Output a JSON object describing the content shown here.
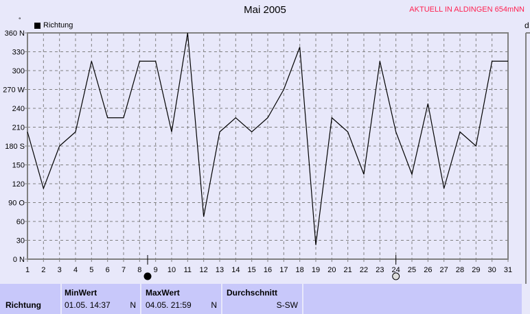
{
  "header": {
    "title": "Mai 2005",
    "aktuell": "AKTUELL IN ALDINGEN 654mNN",
    "unit": "°",
    "right_panel_label": "d"
  },
  "chart_data": {
    "type": "line",
    "title": "Mai 2005",
    "legend": [
      {
        "name": "Richtung",
        "color": "#000000"
      }
    ],
    "legend_placement": "top-left",
    "grid": true,
    "x": [
      1,
      2,
      3,
      4,
      5,
      6,
      7,
      8,
      9,
      10,
      11,
      12,
      13,
      14,
      15,
      16,
      17,
      18,
      19,
      20,
      21,
      22,
      23,
      24,
      25,
      26,
      27,
      28,
      29,
      30,
      31
    ],
    "xlim": [
      1,
      31
    ],
    "ylim": [
      0,
      360
    ],
    "yticks": [
      {
        "v": 0,
        "label": "0  N"
      },
      {
        "v": 30,
        "label": "30"
      },
      {
        "v": 60,
        "label": "60"
      },
      {
        "v": 90,
        "label": "90  O"
      },
      {
        "v": 120,
        "label": "120"
      },
      {
        "v": 150,
        "label": "150"
      },
      {
        "v": 180,
        "label": "180 S"
      },
      {
        "v": 210,
        "label": "210"
      },
      {
        "v": 240,
        "label": "240"
      },
      {
        "v": 270,
        "label": "270 W"
      },
      {
        "v": 300,
        "label": "300"
      },
      {
        "v": 330,
        "label": "330"
      },
      {
        "v": 360,
        "label": "360 N"
      }
    ],
    "series": [
      {
        "name": "Richtung",
        "color": "#000000",
        "values": [
          202.5,
          112.5,
          180,
          202.5,
          315,
          225,
          225,
          315,
          315,
          202.5,
          360,
          67.5,
          202.5,
          225,
          202.5,
          225,
          270,
          337.5,
          22.5,
          225,
          202.5,
          135,
          315,
          202.5,
          135,
          247.5,
          112.5,
          202.5,
          180,
          315,
          315
        ]
      }
    ],
    "markers": [
      {
        "x": 8.5,
        "type": "full-moon-black"
      },
      {
        "x": 24,
        "type": "moon-gray"
      }
    ]
  },
  "table": {
    "row_label": "Richtung",
    "min": {
      "header": "MinWert",
      "date": "01.05.  14:37",
      "value": "N"
    },
    "max": {
      "header": "MaxWert",
      "date": "04.05.  21:59",
      "value": "N"
    },
    "avg": {
      "header": "Durchschnitt",
      "value": "S-SW"
    }
  }
}
